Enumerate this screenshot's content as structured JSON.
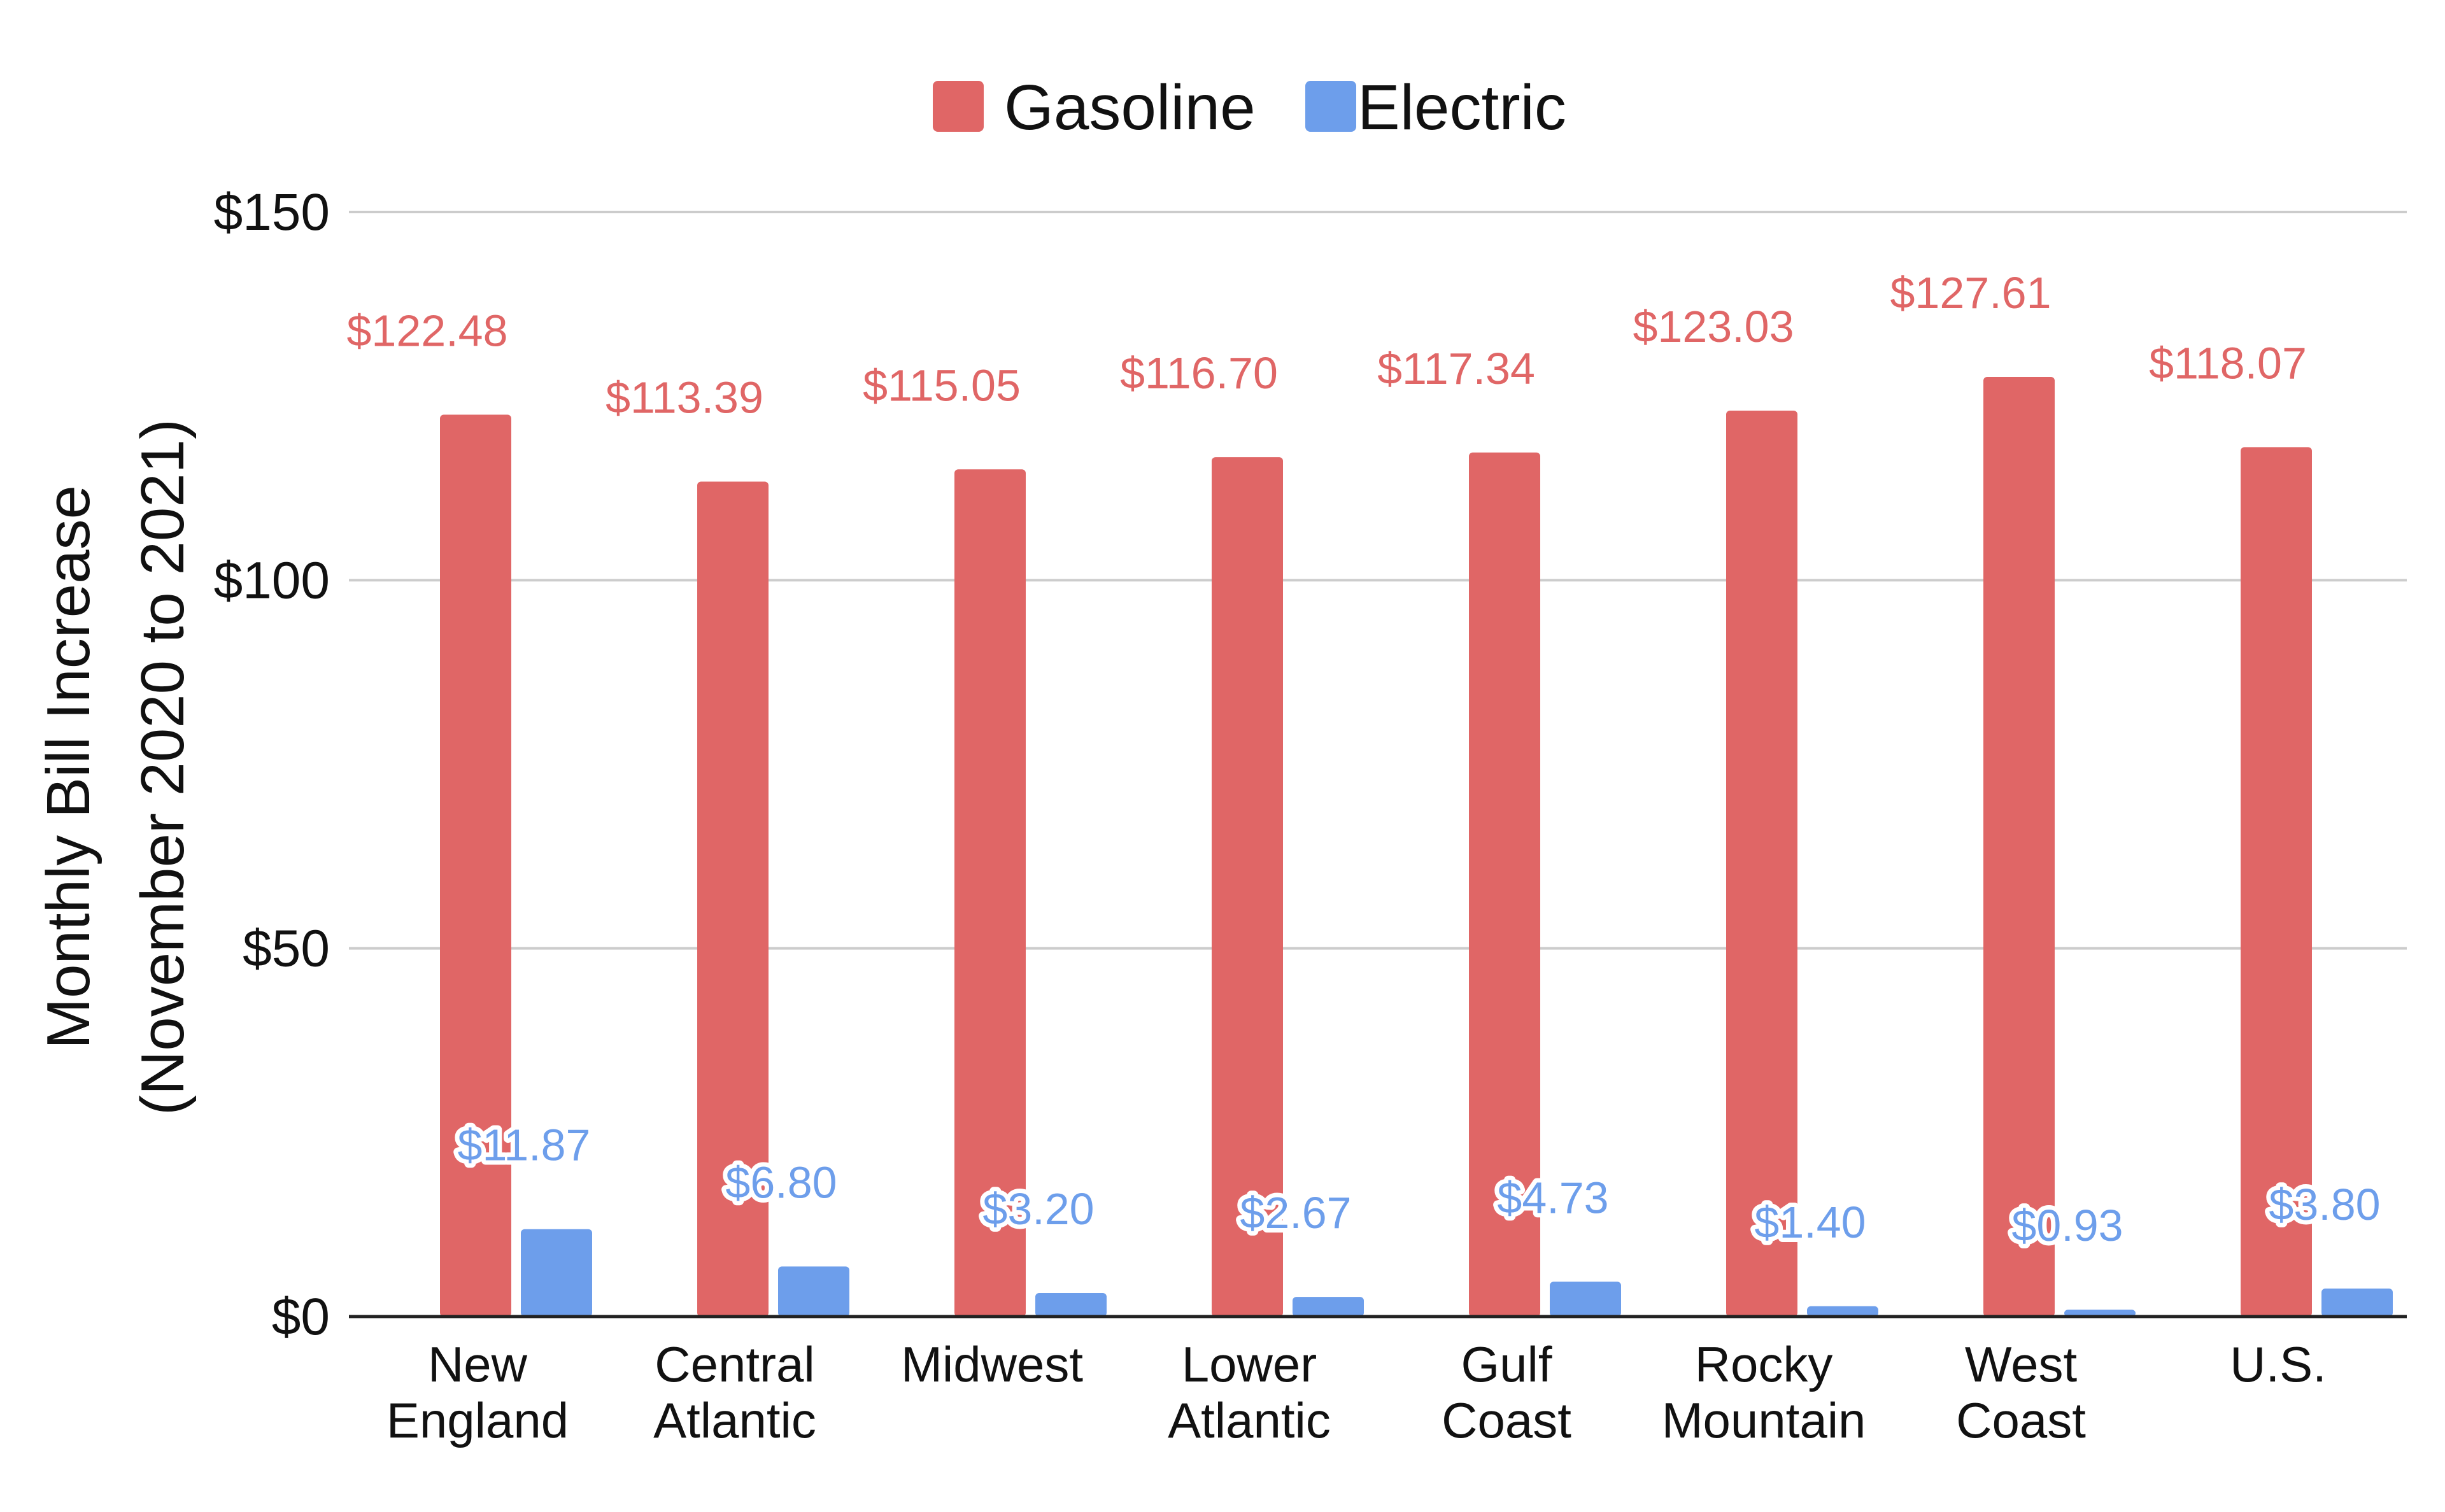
{
  "chart_data": {
    "type": "bar",
    "title": "",
    "xlabel": "",
    "ylabel": [
      "Monthly Bill Increase",
      "(November 2020 to 2021)"
    ],
    "categories": [
      [
        "New",
        "England"
      ],
      [
        "Central",
        "Atlantic"
      ],
      [
        "Midwest"
      ],
      [
        "Lower",
        "Atlantic"
      ],
      [
        "Gulf",
        "Coast"
      ],
      [
        "Rocky",
        "Mountain"
      ],
      [
        "West",
        "Coast"
      ],
      [
        "U.S."
      ]
    ],
    "series": [
      {
        "name": "Gasoline",
        "color": "#e06666",
        "values": [
          122.48,
          113.39,
          115.05,
          116.7,
          117.34,
          123.03,
          127.61,
          118.07
        ],
        "labels": [
          "$122.48",
          "$113.39",
          "$115.05",
          "$116.70",
          "$117.34",
          "$123.03",
          "$127.61",
          "$118.07"
        ]
      },
      {
        "name": "Electric",
        "color": "#6d9eeb",
        "values": [
          11.87,
          6.8,
          3.2,
          2.67,
          4.73,
          1.4,
          0.93,
          3.8
        ],
        "labels": [
          "$11.87",
          "$6.80",
          "$3.20",
          "$2.67",
          "$4.73",
          "$1.40",
          "$0.93",
          "$3.80"
        ]
      }
    ],
    "ylim": [
      0,
      150
    ],
    "yticks": [
      0,
      50,
      100,
      150
    ],
    "ytick_labels": [
      "$0",
      "$50",
      "$100",
      "$150"
    ],
    "grid": true,
    "legend_position": "top-center"
  }
}
